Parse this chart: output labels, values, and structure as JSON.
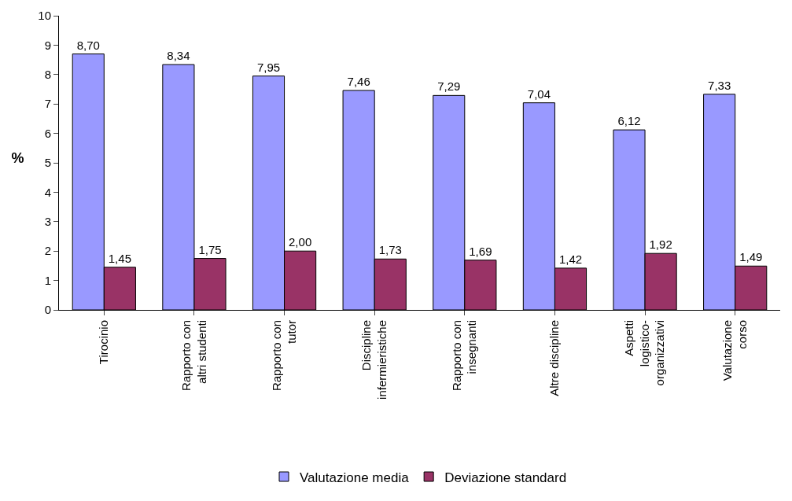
{
  "chart_data": {
    "type": "bar",
    "ylabel": "%",
    "categories": [
      "Tirocinio",
      "Rapporto con altri studenti",
      "Rapporto con tutor",
      "Discipline infermieristiche",
      "Rapporto con insegnanti",
      "Altre discipline",
      "Aspetti logistico-organizzativi",
      "Valutazione corso"
    ],
    "series": [
      {
        "name": "Valutazione media",
        "color": "#9999ff",
        "values": [
          8.7,
          8.34,
          7.95,
          7.46,
          7.29,
          7.04,
          6.12,
          7.33
        ],
        "value_labels": [
          "8,70",
          "8,34",
          "7,95",
          "7,46",
          "7,29",
          "7,04",
          "6,12",
          "7,33"
        ]
      },
      {
        "name": "Deviazione standard",
        "color": "#993366",
        "values": [
          1.45,
          1.75,
          2.0,
          1.73,
          1.69,
          1.42,
          1.92,
          1.49
        ],
        "value_labels": [
          "1,45",
          "1,75",
          "2,00",
          "1,73",
          "1,69",
          "1,42",
          "1,92",
          "1,49"
        ]
      }
    ],
    "ylim": [
      0,
      10
    ],
    "yticks": [
      0,
      1,
      2,
      3,
      4,
      5,
      6,
      7,
      8,
      9,
      10
    ],
    "grid": false,
    "legend": "bottom"
  }
}
